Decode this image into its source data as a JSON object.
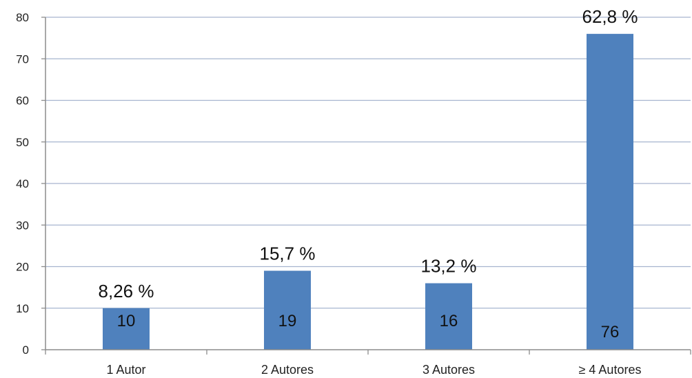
{
  "chart_data": {
    "type": "bar",
    "categories": [
      "1 Autor",
      "2 Autores",
      "3 Autores",
      "≥ 4 Autores"
    ],
    "values": [
      10,
      19,
      16,
      76
    ],
    "value_labels": [
      "10",
      "19",
      "16",
      "76"
    ],
    "percent_labels": [
      "8,26 %",
      "15,7 %",
      "13,2 %",
      "62,8 %"
    ],
    "ylim": [
      0,
      80
    ],
    "yticks": [
      "0",
      "10",
      "20",
      "30",
      "40",
      "50",
      "60",
      "70",
      "80"
    ],
    "grid": true,
    "bar_color": "#4f81bd",
    "grid_color": "#a6b4cf",
    "axis_color": "#8c8c8c"
  }
}
